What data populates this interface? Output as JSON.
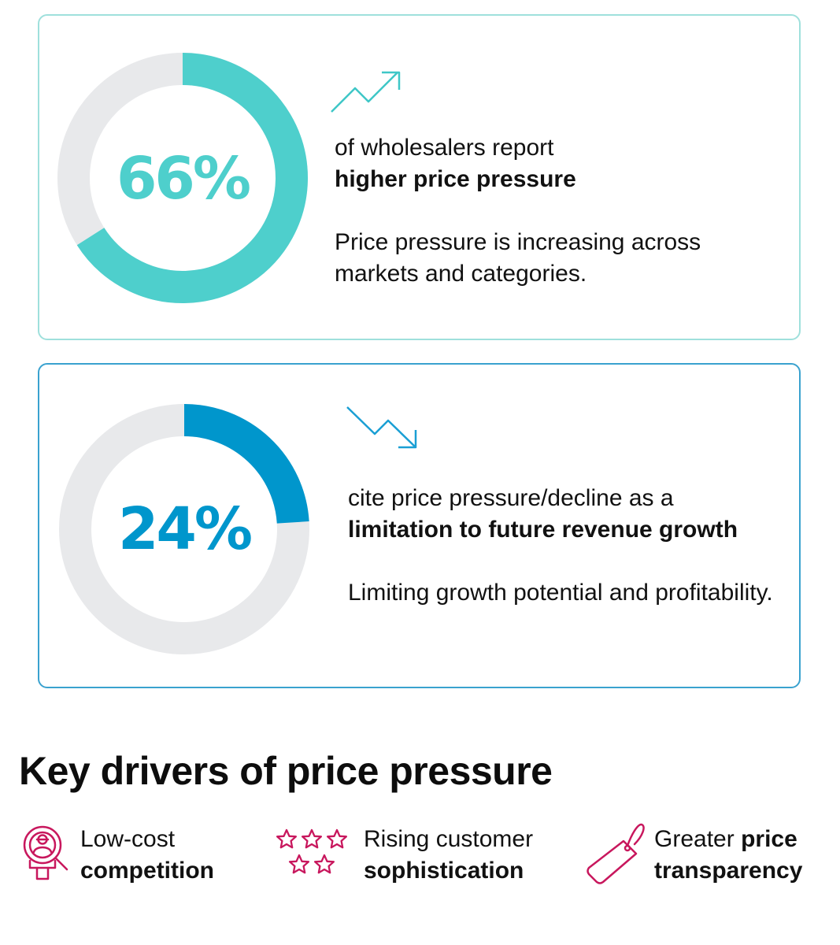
{
  "chart_data": [
    {
      "type": "pie",
      "values": [
        66,
        34
      ],
      "center_label": "66%",
      "colors": {
        "value": "#4ecfcc",
        "track": "#e8e9eb",
        "text": "#4ecfcc"
      },
      "trend_icon": "trend-up-icon",
      "lead": "of wholesalers report",
      "highlight": "higher price pressure",
      "description": "Price pressure is increasing across markets and categories."
    },
    {
      "type": "pie",
      "values": [
        24,
        76
      ],
      "center_label": "24%",
      "colors": {
        "value": "#0096cc",
        "track": "#e8e9eb",
        "text": "#0096cc"
      },
      "trend_icon": "trend-down-icon",
      "lead": "cite price pressure/decline as a",
      "highlight": "limitation to future revenue growth",
      "description": "Limiting growth potential and profitability."
    }
  ],
  "drivers": {
    "title": "Key drivers of price pressure",
    "icon_color": "#c8175d",
    "items": [
      {
        "icon": "competitor-magnifier-icon",
        "plain": "Low-cost",
        "bold": "competition"
      },
      {
        "icon": "stars-rating-icon",
        "plain": "Rising customer",
        "bold": "sophistication"
      },
      {
        "icon": "price-tag-icon",
        "plain_before": "Greater",
        "bold_after": "price",
        "bold": "transparency"
      }
    ]
  }
}
